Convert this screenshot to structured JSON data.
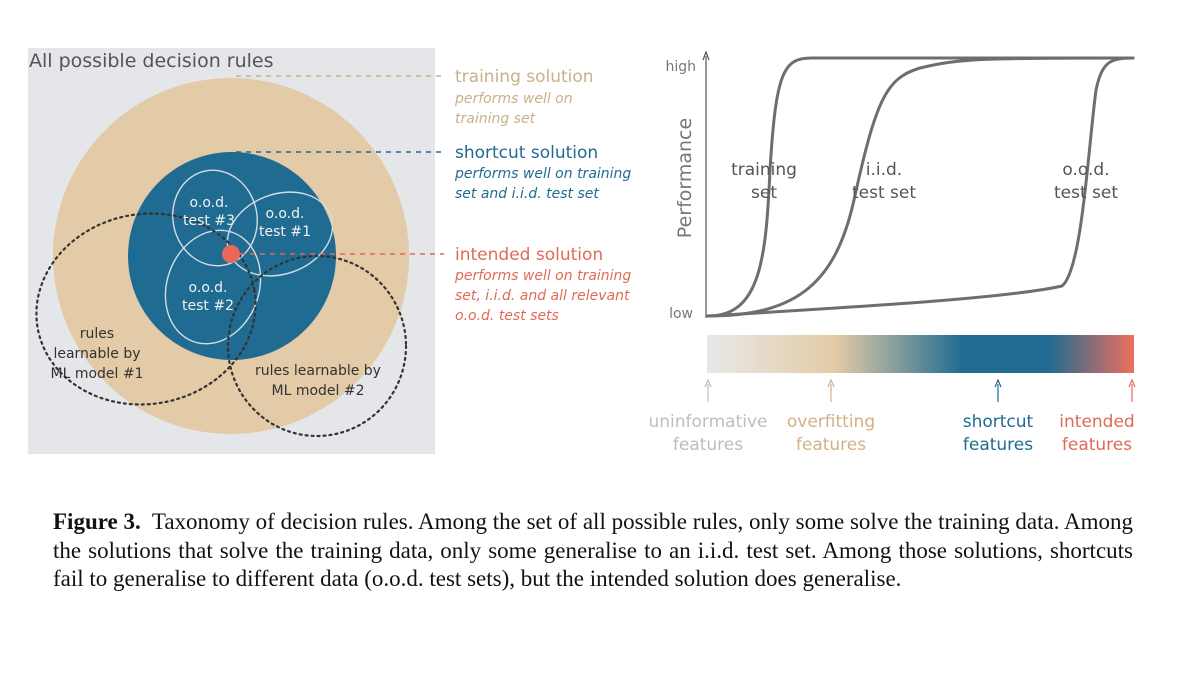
{
  "left_panel": {
    "title": "All possible decision rules",
    "regions": {
      "ood1": [
        "o.o.d.",
        "test #1"
      ],
      "ood2": [
        "o.o.d.",
        "test #2"
      ],
      "ood3": [
        "o.o.d.",
        "test #3"
      ],
      "model1": [
        "rules",
        "learnable by",
        "ML model #1"
      ],
      "model2": [
        "rules learnable by",
        "ML model #2"
      ]
    },
    "labels": [
      {
        "key": "training",
        "title": "training solution",
        "desc": [
          "performs well on",
          "training set"
        ],
        "color": "#c8b08a"
      },
      {
        "key": "shortcut",
        "title": "shortcut solution",
        "desc": [
          "performs well on training",
          "set and i.i.d. test set"
        ],
        "color": "#1f6b92"
      },
      {
        "key": "intended",
        "title": "intended solution",
        "desc": [
          "performs well on training",
          "set, i.i.d. and all relevant",
          "o.o.d. test sets"
        ],
        "color": "#e06a55"
      }
    ],
    "colors": {
      "background": "#e4e6ea",
      "training_region": "#e2cba6",
      "shortcut_region": "#1f6b92",
      "intended_dot": "#e8685a"
    }
  },
  "right_panel": {
    "ylabel": "Performance",
    "y_high": "high",
    "y_low": "low",
    "curve_labels": [
      [
        "training",
        "set"
      ],
      [
        "i.i.d.",
        "test set"
      ],
      [
        "o.o.d.",
        "test set"
      ]
    ],
    "feature_labels": [
      {
        "lines": [
          "uninformative",
          "features"
        ],
        "color": "#bdbdbd"
      },
      {
        "lines": [
          "overfitting",
          "features"
        ],
        "color": "#d2b183"
      },
      {
        "lines": [
          "shortcut",
          "features"
        ],
        "color": "#1f6b92"
      },
      {
        "lines": [
          "intended",
          "features"
        ],
        "color": "#e06a55"
      }
    ],
    "gradient_colors": [
      "#e8e8e8",
      "#e3cba5",
      "#1f6b92",
      "#1f6b92",
      "#ef6f5d"
    ]
  },
  "caption": {
    "label": "Figure 3.",
    "text": "Taxonomy of decision rules.  Among the set of all possible rules, only some solve the training data. Among the solutions that solve the training data, only some generalise to an i.i.d. test set.  Among those solutions, shortcuts fail to generalise to different data (o.o.d. test sets), but the intended solution does generalise."
  }
}
